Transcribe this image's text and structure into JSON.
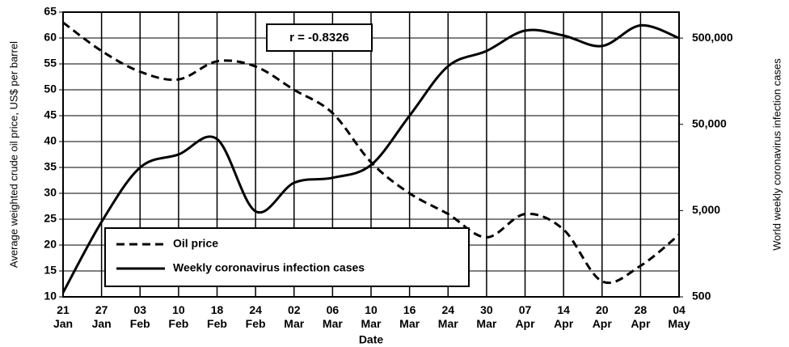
{
  "chart_data": {
    "type": "line",
    "xlabel": "Date",
    "ylabel": "Average weighted crude oil price, US$ per barrel",
    "y2label": "World weekly coronavirus infection cases",
    "annotation": "r = -0.8326",
    "categories": [
      "21 Jan",
      "27 Jan",
      "03 Feb",
      "10 Feb",
      "18 Feb",
      "24 Feb",
      "02 Mar",
      "06 Mar",
      "10 Mar",
      "16 Mar",
      "24 Mar",
      "30 Mar",
      "07 Apr",
      "14 Apr",
      "20 Apr",
      "28 Apr",
      "04 May"
    ],
    "series": [
      {
        "name": "Oil price",
        "color": "#000000",
        "line_style": "dashed",
        "axis": "y",
        "values": [
          63,
          57.5,
          53.5,
          52,
          55.5,
          54.5,
          50,
          45.5,
          36,
          30,
          26,
          21.5,
          26,
          23,
          13,
          16,
          22
        ]
      },
      {
        "name": "Weekly coronavirus infection cases",
        "color": "#000000",
        "line_style": "solid",
        "axis": "y2",
        "values": [
          560,
          3700,
          15800,
          22400,
          33700,
          4900,
          10500,
          12000,
          16900,
          63000,
          236000,
          355000,
          610000,
          535000,
          405000,
          702000,
          500000
        ]
      }
    ],
    "ylim": [
      10,
      65
    ],
    "yticks": [
      10,
      15,
      20,
      25,
      30,
      35,
      40,
      45,
      50,
      55,
      60,
      65
    ],
    "y2lim": [
      500,
      1000000
    ],
    "y2_log": true,
    "y2ticks": [
      500,
      {
        "value": 5000,
        "label": "5,000"
      },
      {
        "value": 50000,
        "label": "50,000"
      },
      {
        "value": 500000,
        "label": "500,000"
      }
    ],
    "grid": true,
    "legend": "lower left"
  }
}
